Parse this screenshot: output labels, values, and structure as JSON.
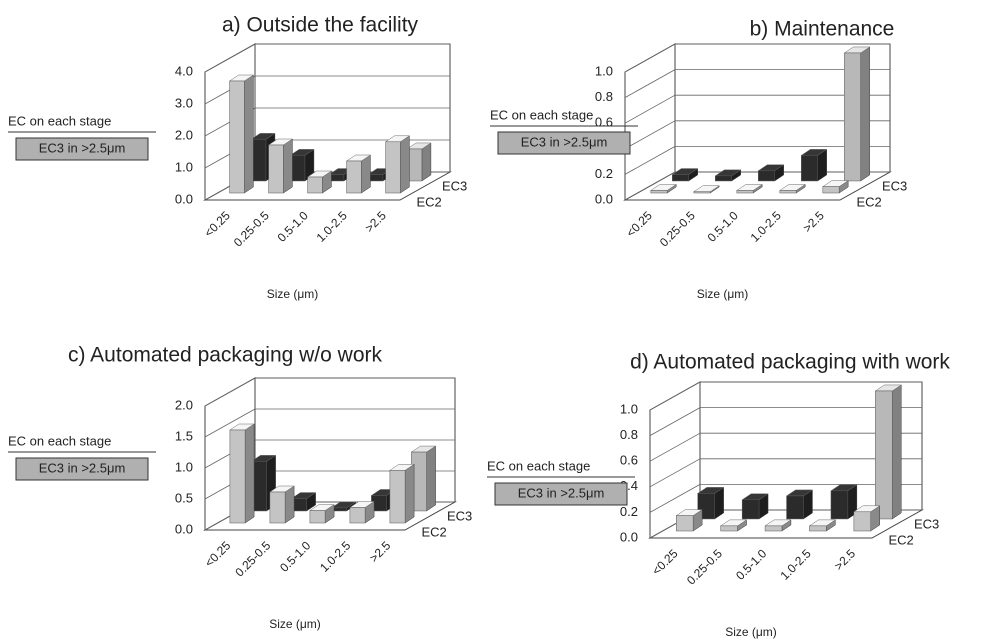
{
  "chart_data": [
    {
      "type": "bar3d",
      "title": "a) Outside the facility",
      "x_label": "Size (μm)",
      "legend_title": "EC on each stage",
      "legend_note": "EC3 in >2.5μm",
      "note_color": "#b0b0b0",
      "categories": [
        "<0.25",
        "0.25-0.5",
        "0.5-1.0",
        "1.0-2.5",
        ">2.5"
      ],
      "series": [
        {
          "name": "EC2",
          "color": "#c4c4c4",
          "values": [
            3.5,
            1.5,
            0.5,
            1.0,
            1.6
          ]
        },
        {
          "name": "EC3",
          "color": "#2b2b2b",
          "colors": [
            "#2b2b2b",
            "#2b2b2b",
            "#2b2b2b",
            "#2b2b2b",
            "#b8b8b8"
          ],
          "values": [
            1.3,
            0.8,
            0.2,
            0.2,
            1.0
          ]
        }
      ],
      "ylim": [
        0,
        4
      ],
      "yticks": [
        {
          "value": 0,
          "label": "0.0"
        },
        {
          "value": 1,
          "label": "1.0"
        },
        {
          "value": 2,
          "label": "2.0"
        },
        {
          "value": 3,
          "label": "3.0"
        },
        {
          "value": 4,
          "label": "4.0"
        }
      ],
      "grid": true
    },
    {
      "type": "bar3d",
      "title": "b) Maintenance",
      "x_label": "Size (μm)",
      "legend_title": "EC on each stage",
      "legend_note": "EC3 in >2.5μm",
      "note_color": "#b0b0b0",
      "categories": [
        "<0.25",
        "0.25-0.5",
        "0.5-1.0",
        "1.0-2.5",
        ">2.5"
      ],
      "series": [
        {
          "name": "EC2",
          "color": "#c4c4c4",
          "values": [
            0.02,
            0.01,
            0.02,
            0.02,
            0.05
          ]
        },
        {
          "name": "EC3",
          "color": "#2b2b2b",
          "colors": [
            "#2b2b2b",
            "#2b2b2b",
            "#2b2b2b",
            "#2b2b2b",
            "#b8b8b8"
          ],
          "values": [
            0.05,
            0.04,
            0.08,
            0.2,
            1.0
          ]
        }
      ],
      "ylim": [
        0,
        1
      ],
      "yticks": [
        {
          "value": 0,
          "label": "0.0"
        },
        0.2,
        0.4,
        0.6,
        0.8,
        {
          "value": 1,
          "label": "1.0"
        }
      ],
      "grid": true
    },
    {
      "type": "bar3d",
      "title": "c) Automated packaging w/o work",
      "x_label": "Size (μm)",
      "legend_title": "EC on each stage",
      "legend_note": "EC3 in >2.5μm",
      "note_color": "#b0b0b0",
      "categories": [
        "<0.25",
        "0.25-0.5",
        "0.5-1.0",
        "1.0-2.5",
        ">2.5"
      ],
      "series": [
        {
          "name": "EC2",
          "color": "#c4c4c4",
          "values": [
            1.5,
            0.5,
            0.2,
            0.25,
            0.85
          ]
        },
        {
          "name": "EC3",
          "color": "#2b2b2b",
          "colors": [
            "#2b2b2b",
            "#2b2b2b",
            "#2b2b2b",
            "#2b2b2b",
            "#b8b8b8"
          ],
          "values": [
            0.8,
            0.2,
            0.05,
            0.25,
            0.95
          ]
        }
      ],
      "ylim": [
        0,
        2
      ],
      "yticks": [
        {
          "value": 0,
          "label": "0.0"
        },
        0.5,
        {
          "value": 1,
          "label": "1.0"
        },
        1.5,
        {
          "value": 2,
          "label": "2.0"
        }
      ],
      "grid": true
    },
    {
      "type": "bar3d",
      "title": "d) Automated packaging with work",
      "x_label": "Size (μm)",
      "legend_title": "EC on each stage",
      "legend_note": "EC3 in >2.5μm",
      "note_color": "#b0b0b0",
      "categories": [
        "<0.25",
        "0.25-0.5",
        "0.5-1.0",
        "1.0-2.5",
        ">2.5"
      ],
      "series": [
        {
          "name": "EC2",
          "color": "#c4c4c4",
          "values": [
            0.12,
            0.04,
            0.04,
            0.04,
            0.15
          ]
        },
        {
          "name": "EC3",
          "color": "#2b2b2b",
          "colors": [
            "#2b2b2b",
            "#2b2b2b",
            "#2b2b2b",
            "#2b2b2b",
            "#b8b8b8"
          ],
          "values": [
            0.2,
            0.15,
            0.18,
            0.22,
            1.0
          ]
        }
      ],
      "ylim": [
        0,
        1
      ],
      "yticks": [
        {
          "value": 0,
          "label": "0.0"
        },
        0.2,
        0.4,
        0.6,
        0.8,
        {
          "value": 1,
          "label": "1.0"
        }
      ],
      "grid": true
    }
  ]
}
